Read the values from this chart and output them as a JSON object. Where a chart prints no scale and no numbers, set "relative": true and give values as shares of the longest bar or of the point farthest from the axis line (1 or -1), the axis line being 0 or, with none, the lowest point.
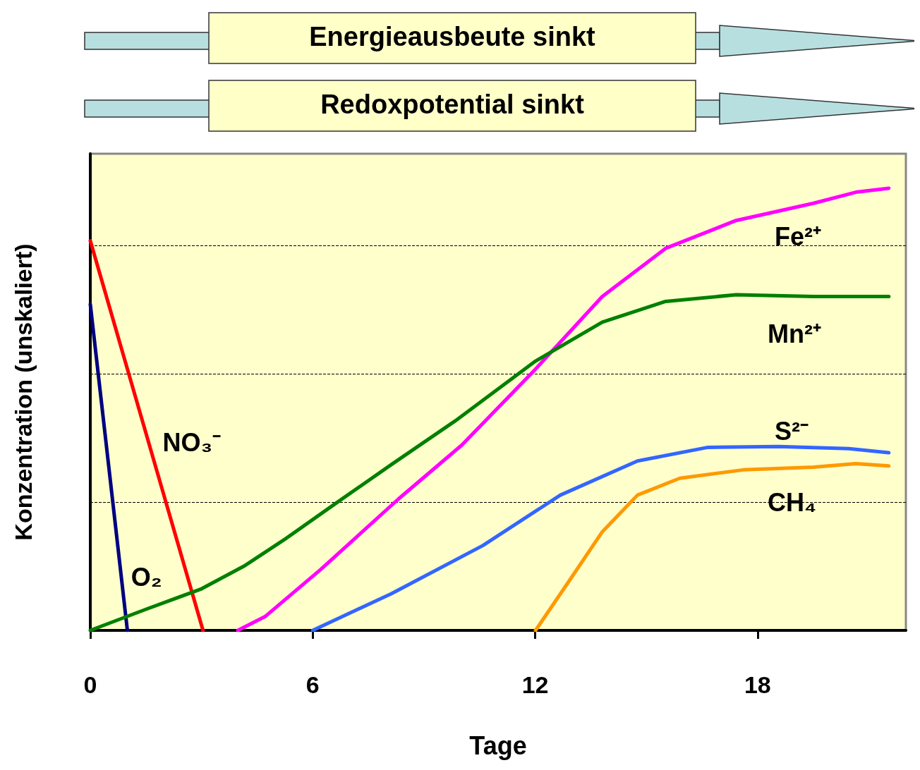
{
  "chart_data": {
    "type": "line",
    "xlabel": "Tage",
    "ylabel": "Konzentration (unskaliert)",
    "relative": true,
    "xlim": [
      0,
      22
    ],
    "xticks": [
      0,
      6,
      12,
      18
    ],
    "grid": false,
    "legend": false,
    "marker": "none",
    "line_style": "solid",
    "annotations": [
      "Energieausbeute sinkt",
      "Redoxpotential sinkt"
    ],
    "ref_lines": [
      {
        "axis": "y",
        "value": 0.29,
        "color": "#000000",
        "line_style": "dashed"
      },
      {
        "axis": "y",
        "value": 0.58,
        "color": "#000000",
        "line_style": "dashed"
      },
      {
        "axis": "y",
        "value": 0.87,
        "color": "#000000",
        "line_style": "dashed"
      }
    ],
    "series": [
      {
        "name": "O₂",
        "color": "#000080",
        "x": [
          0,
          1.0
        ],
        "values": [
          0.7375,
          0
        ]
      },
      {
        "name": "NO₃⁻",
        "color": "#ff0000",
        "x": [
          0,
          3.04
        ],
        "values": [
          0.881,
          0
        ]
      },
      {
        "name": "Fe²⁺",
        "color": "#ff00ff",
        "x": [
          3.98,
          4.71,
          6.22,
          8.31,
          10.02,
          12.01,
          13.81,
          15.52,
          17.42,
          19.51,
          20.65,
          21.54
        ],
        "values": [
          0,
          0.031,
          0.138,
          0.297,
          0.419,
          0.591,
          0.755,
          0.864,
          0.927,
          0.966,
          0.991,
          1
        ]
      },
      {
        "name": "Mn²⁺",
        "color": "#008000",
        "x": [
          0,
          1.48,
          3.0,
          4.14,
          5.28,
          6.6,
          8.12,
          9.83,
          12.01,
          13.81,
          15.52,
          17.42,
          19.51,
          21.54
        ],
        "values": [
          0,
          0.047,
          0.094,
          0.145,
          0.208,
          0.286,
          0.375,
          0.473,
          0.609,
          0.697,
          0.744,
          0.759,
          0.755,
          0.755
        ]
      },
      {
        "name": "S²⁻",
        "color": "#3366ff",
        "x": [
          6.0,
          8.12,
          10.59,
          12.68,
          14.76,
          16.66,
          18.56,
          20.46,
          21.54
        ],
        "values": [
          0,
          0.083,
          0.192,
          0.306,
          0.383,
          0.414,
          0.416,
          0.411,
          0.402
        ]
      },
      {
        "name": "CH₄",
        "color": "#ff9900",
        "x": [
          12.01,
          12.87,
          13.81,
          14.76,
          15.9,
          17.61,
          19.51,
          20.65,
          21.54
        ],
        "values": [
          0,
          0.106,
          0.223,
          0.306,
          0.344,
          0.363,
          0.369,
          0.377,
          0.372
        ]
      }
    ]
  }
}
